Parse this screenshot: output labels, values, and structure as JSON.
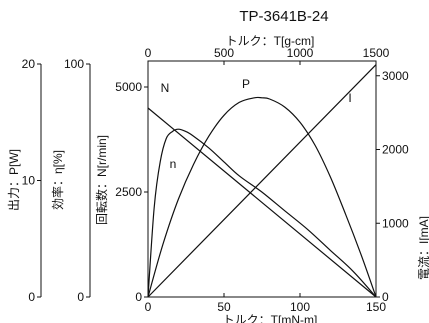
{
  "chart_data": {
    "type": "line",
    "title": "TP-3641B-24",
    "top_axis": {
      "label": "トルク：T[g-cm]",
      "range": [
        0,
        1500
      ],
      "ticks": [
        0,
        500,
        1000,
        1500
      ]
    },
    "bottom_axis": {
      "label": "トルク：T[mN-m]",
      "range": [
        0,
        150
      ],
      "ticks": [
        0,
        50,
        100,
        150
      ]
    },
    "left_axes": [
      {
        "key": "power",
        "label": "出力：P[W]",
        "range": [
          0,
          20
        ],
        "ticks": [
          0,
          10,
          20
        ]
      },
      {
        "key": "efficiency",
        "label": "効率：η[%]",
        "range": [
          0,
          100
        ],
        "ticks": [
          0,
          100
        ]
      },
      {
        "key": "speed",
        "label": "回転数：N[r/min]",
        "range": [
          0,
          5000
        ],
        "ticks": [
          0,
          2500,
          5000
        ]
      }
    ],
    "right_axis": {
      "key": "current",
      "label": "電流：I[mA]",
      "range": [
        0,
        3200
      ],
      "ticks": [
        0,
        1000,
        2000,
        3000
      ]
    },
    "series": [
      {
        "name": "N",
        "axis": "speed",
        "points": [
          [
            0,
            4500
          ],
          [
            150,
            0
          ]
        ]
      },
      {
        "name": "I",
        "axis": "current",
        "points": [
          [
            0,
            0
          ],
          [
            150,
            3150
          ]
        ]
      },
      {
        "name": "P",
        "axis": "power",
        "points": [
          [
            0,
            0
          ],
          [
            10,
            4.6
          ],
          [
            20,
            8.4
          ],
          [
            30,
            11.4
          ],
          [
            40,
            13.8
          ],
          [
            50,
            15.6
          ],
          [
            60,
            16.7
          ],
          [
            70,
            17.1
          ],
          [
            75,
            17.1
          ],
          [
            80,
            17.0
          ],
          [
            90,
            16.3
          ],
          [
            100,
            15.0
          ],
          [
            110,
            13.0
          ],
          [
            120,
            10.3
          ],
          [
            130,
            7.1
          ],
          [
            140,
            3.7
          ],
          [
            150,
            0
          ]
        ]
      },
      {
        "name": "n",
        "axis": "efficiency",
        "points": [
          [
            0,
            0
          ],
          [
            4,
            38
          ],
          [
            8,
            58
          ],
          [
            12,
            68
          ],
          [
            16,
            71
          ],
          [
            20,
            72
          ],
          [
            25,
            71
          ],
          [
            30,
            69
          ],
          [
            40,
            64
          ],
          [
            50,
            58
          ],
          [
            60,
            52
          ],
          [
            75,
            45
          ],
          [
            90,
            37
          ],
          [
            105,
            29
          ],
          [
            120,
            20
          ],
          [
            135,
            11
          ],
          [
            150,
            0
          ]
        ]
      }
    ]
  }
}
